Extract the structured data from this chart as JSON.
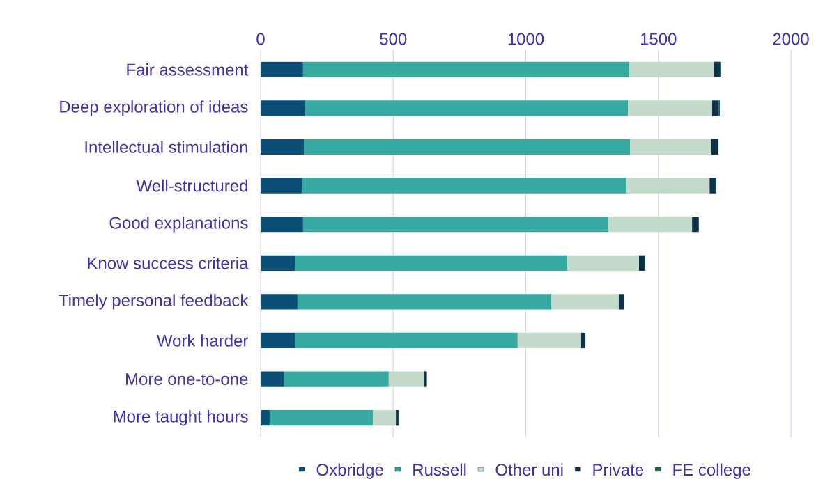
{
  "chart_data": {
    "type": "bar",
    "orientation": "horizontal",
    "stacked": true,
    "categories": [
      "Fair assessment",
      "Deep exploration of ideas",
      "Intellectual stimulation",
      "Well-structured",
      "Good explanations",
      "Know success criteria",
      "Timely personal feedback",
      "Work harder",
      "More one-to-one",
      "More taught hours"
    ],
    "series": [
      {
        "name": "Oxbridge",
        "color": "#0b4f76",
        "values": [
          160,
          166,
          163,
          155,
          160,
          130,
          139,
          131,
          89,
          34
        ]
      },
      {
        "name": "Russell",
        "color": "#36a9a0",
        "values": [
          1230,
          1219,
          1230,
          1225,
          1151,
          1026,
          957,
          838,
          394,
          389
        ]
      },
      {
        "name": "Other uni",
        "color": "#c3dacb",
        "values": [
          319,
          318,
          307,
          313,
          316,
          271,
          254,
          239,
          134,
          87
        ]
      },
      {
        "name": "Private",
        "color": "#0e3049",
        "values": [
          23,
          24,
          24,
          23,
          23,
          21,
          22,
          17,
          10,
          10
        ]
      },
      {
        "name": "FE college",
        "color": "#1e6a60",
        "values": [
          5,
          5,
          3,
          3,
          3,
          3,
          null,
          null,
          null,
          2
        ]
      }
    ],
    "xlim": [
      0,
      2000
    ],
    "xticks": [
      0,
      500,
      1000,
      1500,
      2000
    ],
    "grid": "x",
    "legend": "bottom"
  }
}
